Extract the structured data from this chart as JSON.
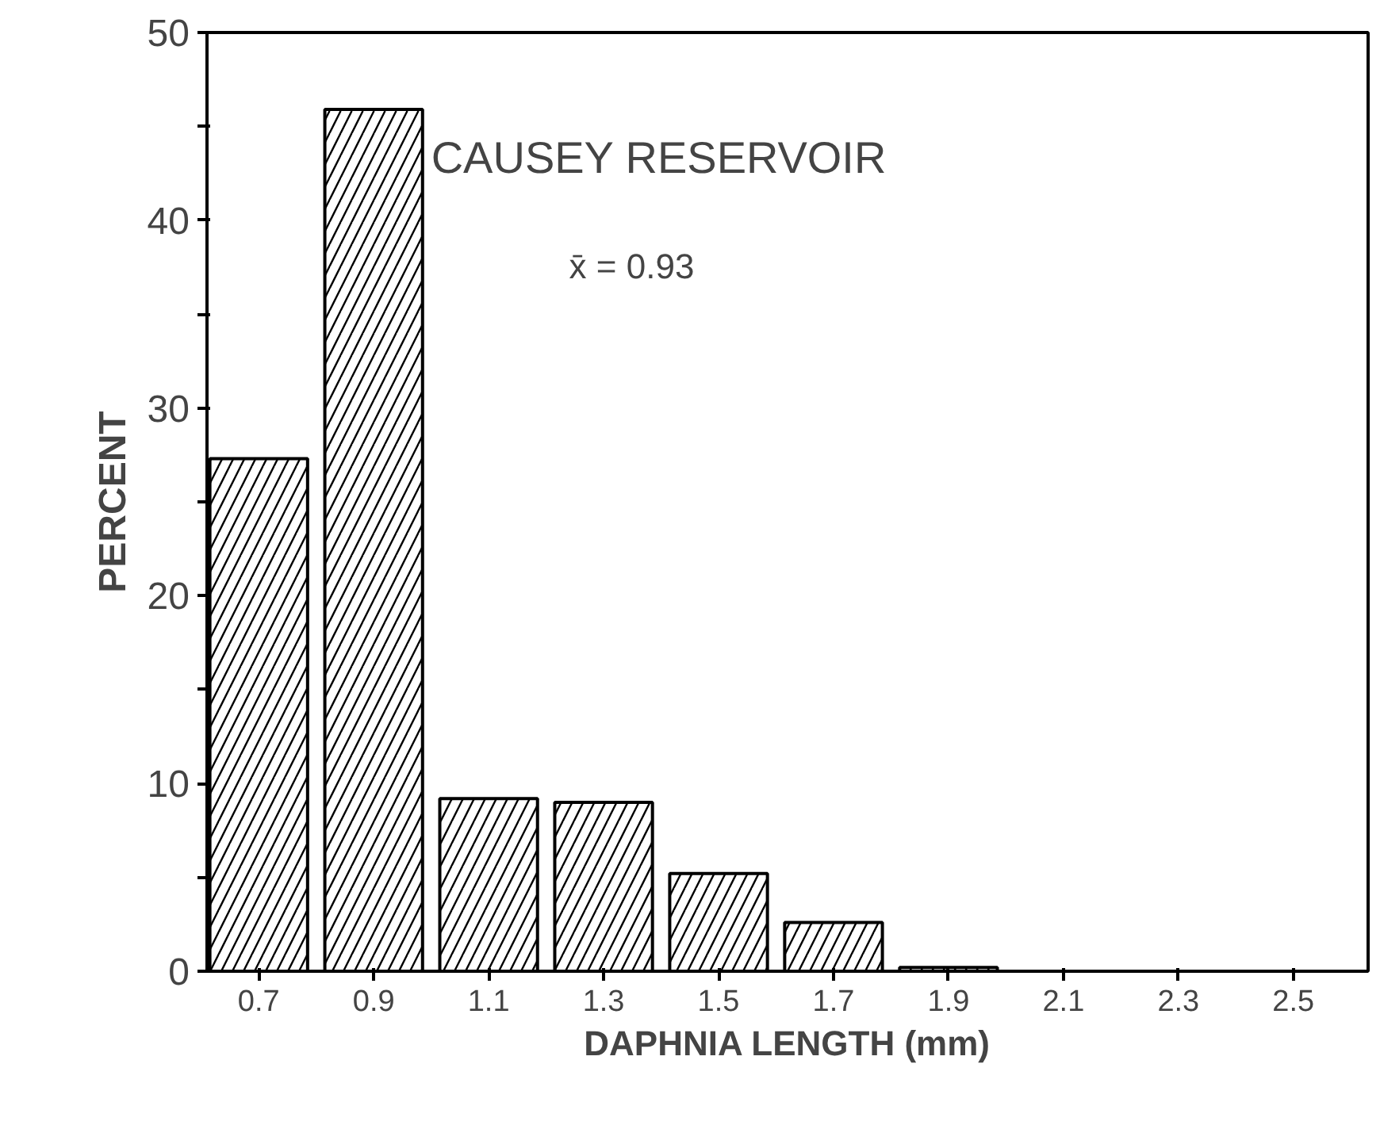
{
  "chart_data": {
    "type": "bar",
    "title": "CAUSEY RESERVOIR",
    "xlabel": "DAPHNIA LENGTH (mm)",
    "ylabel": "PERCENT",
    "categories": [
      "0.7",
      "0.9",
      "1.1",
      "1.3",
      "1.5",
      "1.7",
      "1.9",
      "2.1",
      "2.3",
      "2.5"
    ],
    "values": [
      27.3,
      45.9,
      9.2,
      9.0,
      5.2,
      2.6,
      0.2,
      0,
      0,
      0
    ],
    "color": "#000000",
    "ylim": [
      0,
      50
    ],
    "yticks": [
      0,
      {
        "value": 5,
        "label": null
      },
      10,
      {
        "value": 15,
        "label": null
      },
      20,
      {
        "value": 25,
        "label": null
      },
      30,
      {
        "value": 35,
        "label": null
      },
      40,
      {
        "value": 45,
        "label": null
      },
      50
    ],
    "annotations": [
      "x̄ = 0.93"
    ],
    "grid": false
  }
}
